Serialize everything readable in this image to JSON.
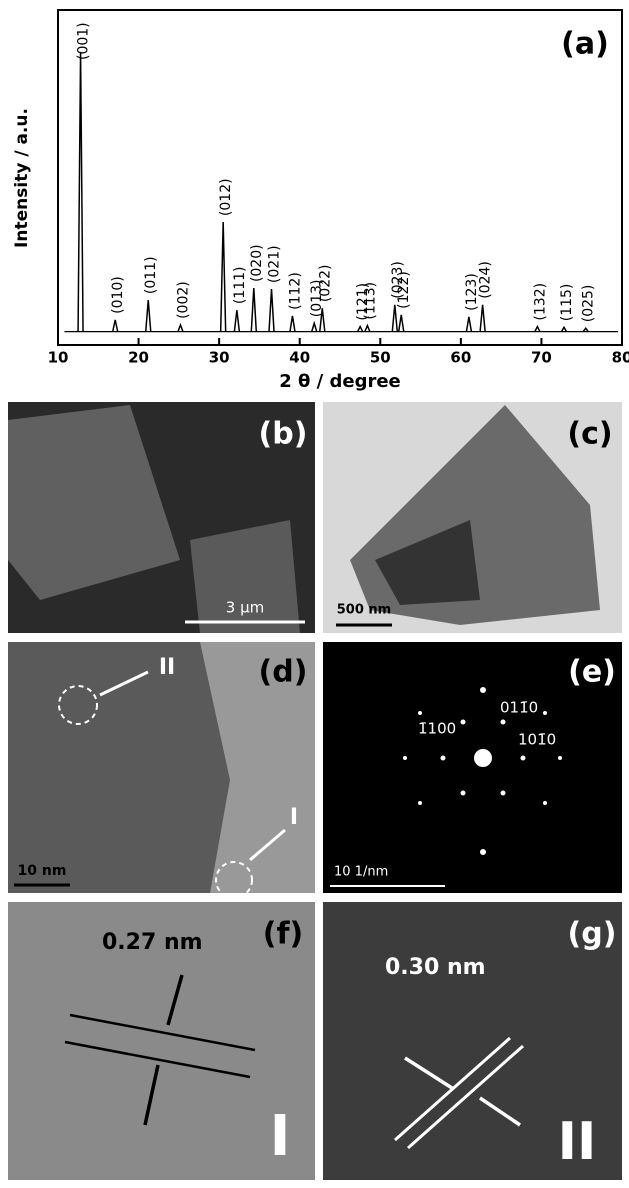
{
  "chart_data": {
    "type": "line",
    "panel_label": "(a)",
    "xlabel": "2 θ / degree",
    "ylabel": "Intensity / a.u.",
    "xlim": [
      10,
      80
    ],
    "xticks": [
      10,
      20,
      30,
      40,
      50,
      60,
      70,
      80
    ],
    "ylim": [
      0,
      100
    ],
    "baseline": 4,
    "color": "#000000",
    "peaks": [
      {
        "label": "(001)",
        "x": 12.8,
        "y": 87.5
      },
      {
        "label": "(010)",
        "x": 17.1,
        "y": 7.5
      },
      {
        "label": "(011)",
        "x": 21.2,
        "y": 13.4
      },
      {
        "label": "(002)",
        "x": 25.2,
        "y": 6
      },
      {
        "label": "(012)",
        "x": 30.5,
        "y": 36.7
      },
      {
        "label": "(111)",
        "x": 32.2,
        "y": 10.4
      },
      {
        "label": "(020)",
        "x": 34.3,
        "y": 17
      },
      {
        "label": "(021)",
        "x": 36.5,
        "y": 16.7
      },
      {
        "label": "(112)",
        "x": 39.1,
        "y": 8.7
      },
      {
        "label": "(013)",
        "x": 41.8,
        "y": 6.5
      },
      {
        "label": "(022)",
        "x": 42.8,
        "y": 11
      },
      {
        "label": "(121)",
        "x": 47.5,
        "y": 5.5
      },
      {
        "label": "(113)",
        "x": 48.4,
        "y": 5.8
      },
      {
        "label": "(023)",
        "x": 51.8,
        "y": 12
      },
      {
        "label": "(122)",
        "x": 52.6,
        "y": 9
      },
      {
        "label": "(123)",
        "x": 61,
        "y": 8.4
      },
      {
        "label": "(024)",
        "x": 62.7,
        "y": 12
      },
      {
        "label": "(132)",
        "x": 69.5,
        "y": 5.5
      },
      {
        "label": "(115)",
        "x": 72.8,
        "y": 5.3
      },
      {
        "label": "(025)",
        "x": 75.5,
        "y": 5
      }
    ]
  },
  "images": [
    {
      "label": "(b)",
      "scale_bar": "3 μm"
    },
    {
      "label": "(c)",
      "scale_bar": "500 nm"
    },
    {
      "label": "(d)",
      "scale_bar": "10 nm",
      "annotations": [
        "II",
        "I"
      ]
    },
    {
      "label": "(e)",
      "scale_bar": "10 1/nm",
      "annotations": [
        "011̄0",
        "1̄100",
        "101̄0"
      ]
    },
    {
      "label": "(f)",
      "annotations": [
        "0.27 nm",
        "I"
      ]
    },
    {
      "label": "(g)",
      "annotations": [
        "0.30 nm",
        "II"
      ]
    }
  ]
}
